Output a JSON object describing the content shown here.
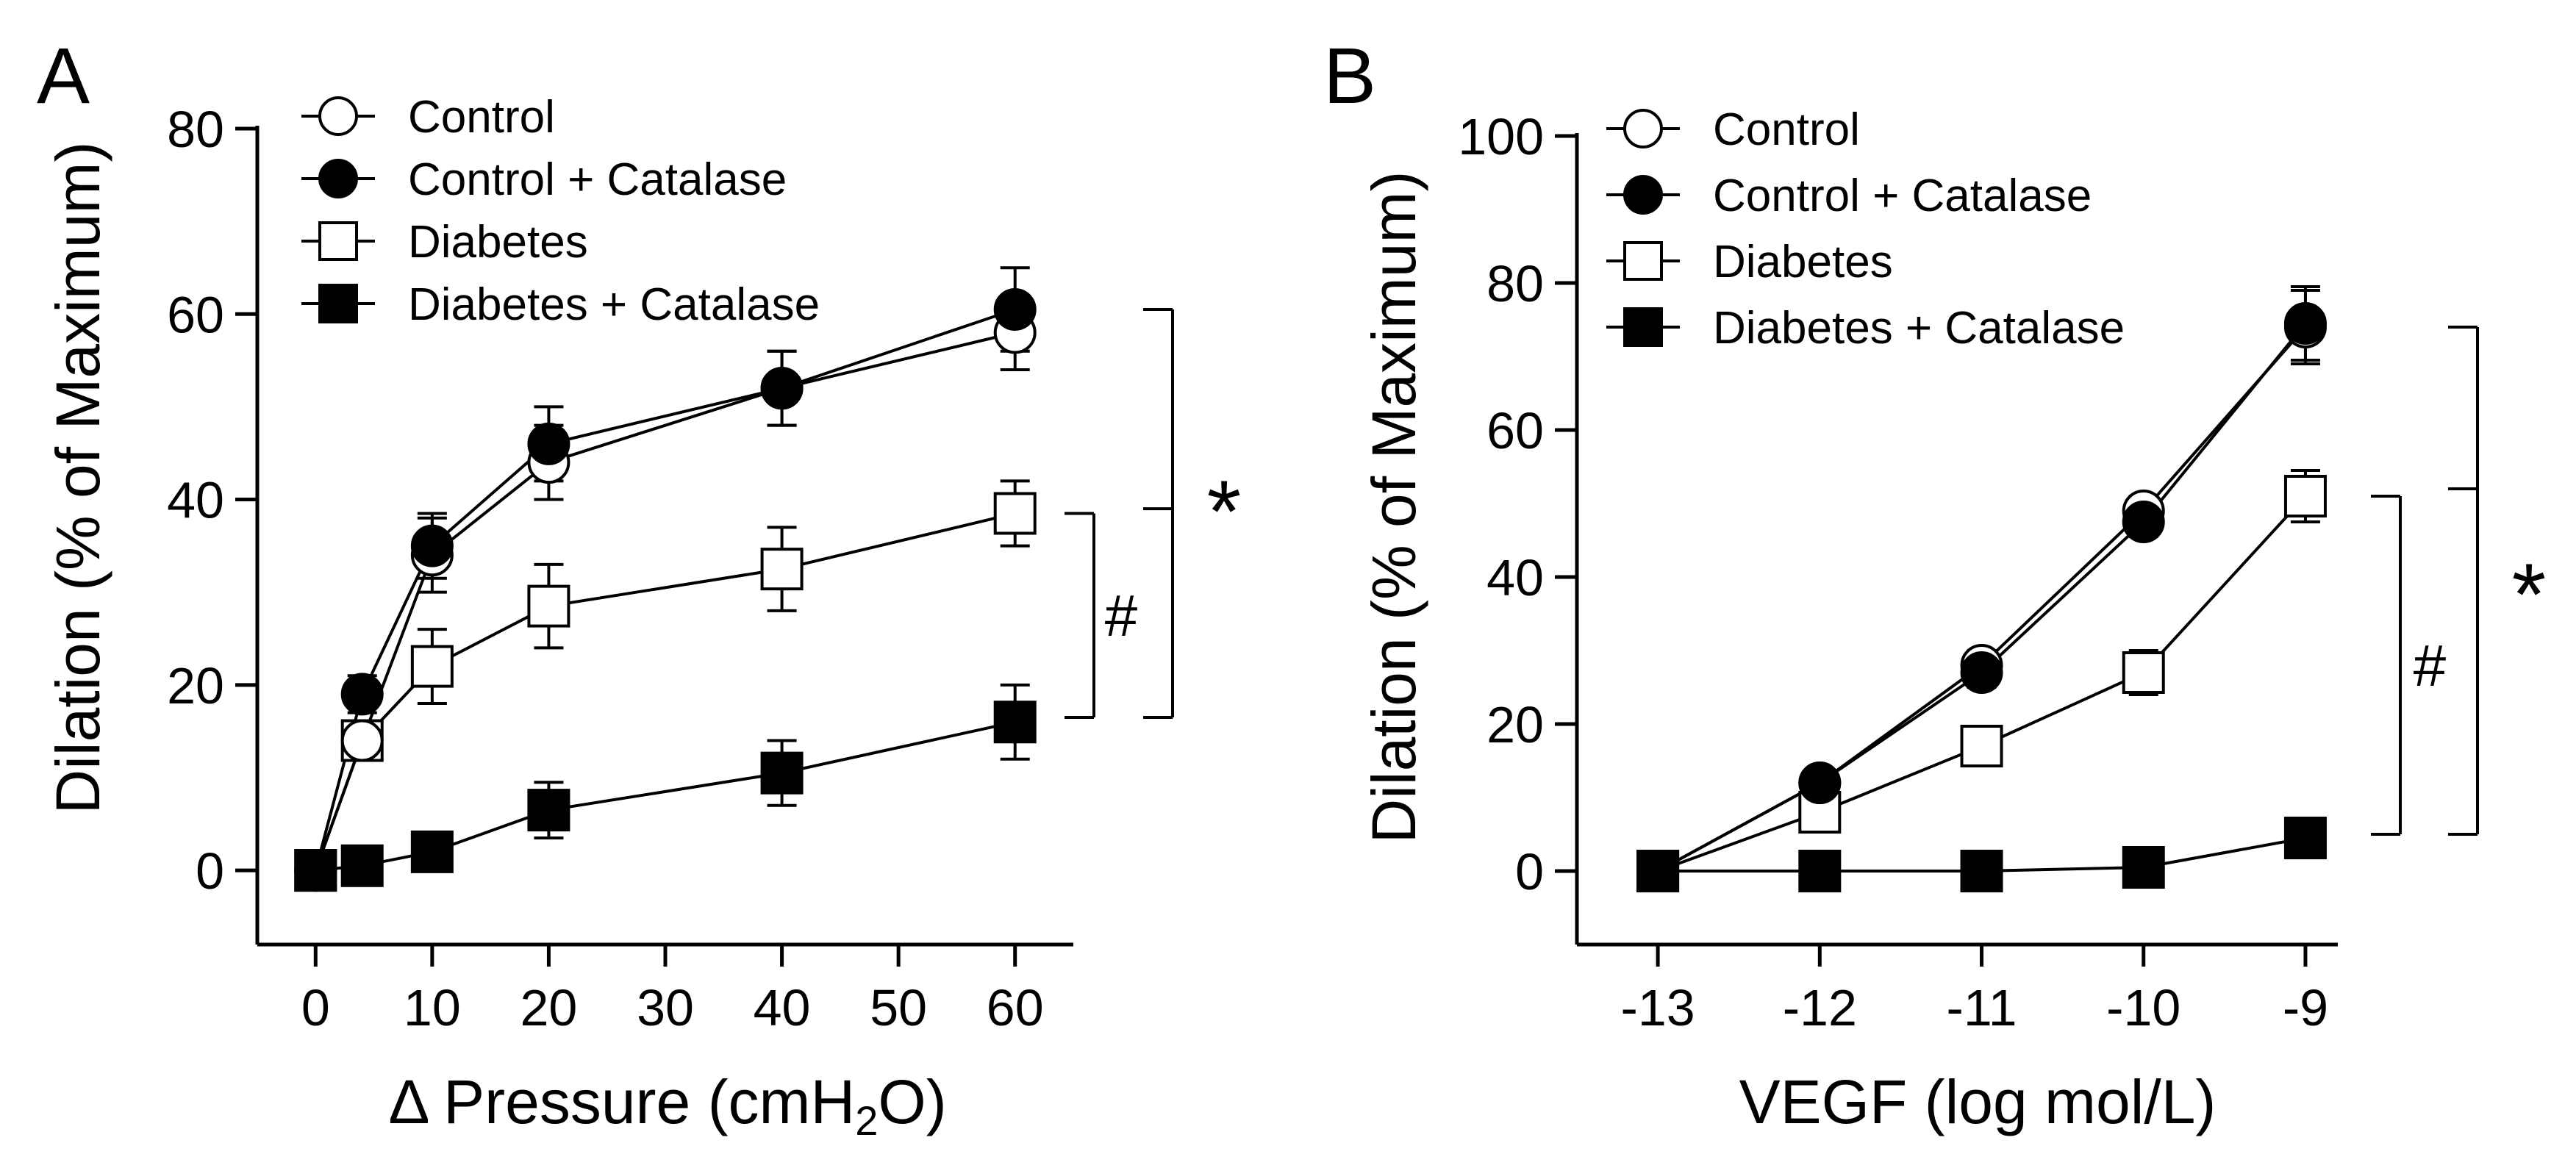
{
  "chart_data": [
    {
      "type": "line",
      "panel": "A",
      "xlabel_prefix": "Δ Pressure (cmH",
      "xlabel_sub": "2",
      "xlabel_suffix": "O)",
      "ylabel": "Dilation (% of Maximum)",
      "xlim": [
        -5,
        65
      ],
      "ylim": [
        -8,
        80
      ],
      "xticks": [
        0,
        10,
        20,
        30,
        40,
        50,
        60
      ],
      "xtick_labels": [
        "0",
        "10",
        "20",
        "30",
        "40",
        "50",
        "60"
      ],
      "yticks": [
        0,
        20,
        40,
        60,
        80
      ],
      "ytick_labels": [
        "0",
        "20",
        "40",
        "60",
        "80"
      ],
      "grid": false,
      "legend_position": "top-left",
      "series": [
        {
          "name": "Control",
          "marker": "circle-open",
          "x": [
            0,
            4,
            10,
            20,
            40,
            60
          ],
          "y": [
            0,
            14,
            34,
            44,
            52,
            58
          ],
          "err": [
            0,
            2,
            4,
            4,
            4,
            4
          ]
        },
        {
          "name": "Control + Catalase",
          "marker": "circle-filled",
          "x": [
            0,
            4,
            10,
            20,
            40,
            60
          ],
          "y": [
            0,
            19,
            35,
            46,
            52,
            60.5
          ],
          "err": [
            0,
            2,
            3.5,
            4,
            4,
            4.5
          ]
        },
        {
          "name": "Diabetes",
          "marker": "square-open",
          "x": [
            0,
            4,
            10,
            20,
            40,
            60
          ],
          "y": [
            0,
            14,
            22,
            28.5,
            32.5,
            38.5
          ],
          "err": [
            0,
            2,
            4,
            4.5,
            4.5,
            3.5
          ]
        },
        {
          "name": "Diabetes + Catalase",
          "marker": "square-filled",
          "x": [
            0,
            4,
            10,
            20,
            40,
            60
          ],
          "y": [
            0,
            0.5,
            2,
            6.5,
            10.5,
            16
          ],
          "err": [
            0,
            1,
            1.5,
            3,
            3.5,
            4
          ]
        }
      ],
      "annotations": [
        {
          "label": "*",
          "x": 61,
          "y_top": 60.5,
          "y_bottom": 16.5,
          "y_mid": 39
        },
        {
          "label": "#",
          "x": 68,
          "y_top": 38.5,
          "y_bottom": 16.5
        }
      ]
    },
    {
      "type": "line",
      "panel": "B",
      "xlabel": "VEGF (log mol/L)",
      "ylabel": "Dilation (% of Maximum)",
      "xlim": [
        -13.5,
        -8.8
      ],
      "ylim": [
        -10,
        100
      ],
      "xticks": [
        -13,
        -12,
        -11,
        -10,
        -9
      ],
      "xtick_labels": [
        "-13",
        "-12",
        "-11",
        "-10",
        "-9"
      ],
      "yticks": [
        0,
        20,
        40,
        60,
        80,
        100
      ],
      "ytick_labels": [
        "0",
        "20",
        "40",
        "60",
        "80",
        "100"
      ],
      "grid": false,
      "legend_position": "top-left",
      "series": [
        {
          "name": "Control",
          "marker": "circle-open",
          "x": [
            -13,
            -12,
            -11,
            -10,
            -9
          ],
          "y": [
            0,
            12,
            28,
            49,
            74
          ],
          "err": [
            0,
            1,
            2,
            2,
            5
          ]
        },
        {
          "name": "Control + Catalase",
          "marker": "circle-filled",
          "x": [
            -13,
            -12,
            -11,
            -10,
            -9
          ],
          "y": [
            0,
            12,
            27,
            47.5,
            74.5
          ],
          "err": [
            0,
            1,
            2,
            2,
            5
          ]
        },
        {
          "name": "Diabetes",
          "marker": "square-open",
          "x": [
            -13,
            -12,
            -11,
            -10,
            -9
          ],
          "y": [
            0,
            8,
            17,
            27,
            51
          ],
          "err": [
            0,
            2,
            2,
            3,
            3.5
          ]
        },
        {
          "name": "Diabetes + Catalase",
          "marker": "square-filled",
          "x": [
            -13,
            -12,
            -11,
            -10,
            -9
          ],
          "y": [
            0,
            0,
            0,
            0.5,
            4.5
          ],
          "err": [
            0,
            0.5,
            0.5,
            1,
            1.5
          ]
        }
      ],
      "annotations": [
        {
          "label": "*",
          "x": -8.9,
          "y_top": 74,
          "y_bottom": 5,
          "y_mid": 52
        },
        {
          "label": "#",
          "x": -8.6,
          "y_top": 51,
          "y_bottom": 5
        }
      ]
    }
  ]
}
